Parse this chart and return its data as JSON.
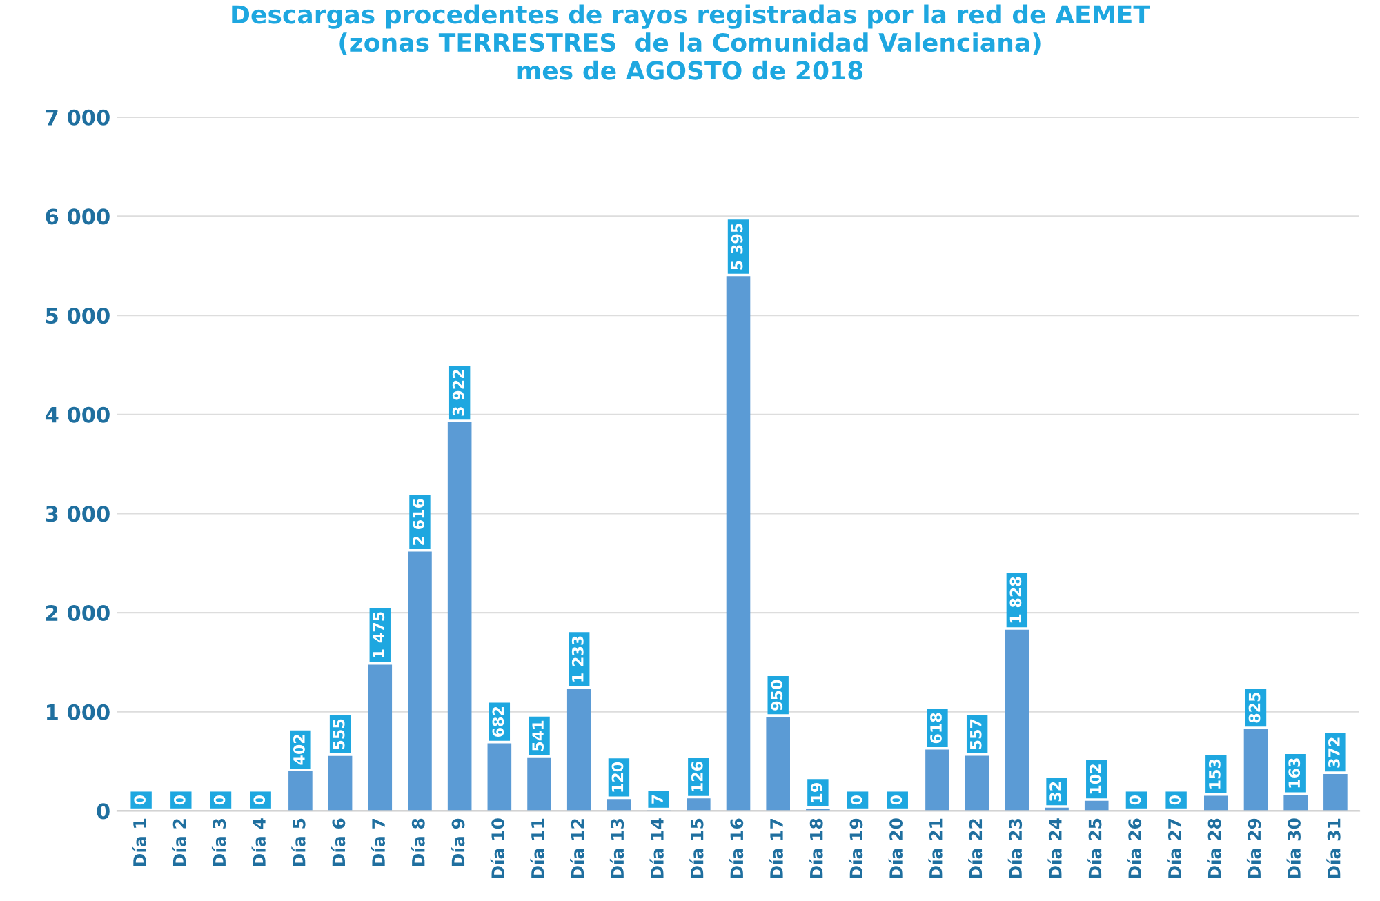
{
  "chart_data": {
    "type": "bar",
    "title": "Descargas procedentes de rayos registradas por la red de AEMET\n(zonas TERRESTRES  de la Comunidad Valenciana)\nmes de AGOSTO de 2018",
    "categories": [
      "Día 1",
      "Día 2",
      "Día 3",
      "Día 4",
      "Día 5",
      "Día 6",
      "Día 7",
      "Día 8",
      "Día 9",
      "Día 10",
      "Día 11",
      "Día 12",
      "Día 13",
      "Día 14",
      "Día 15",
      "Día 16",
      "Día 17",
      "Día 18",
      "Día 19",
      "Día 20",
      "Día 21",
      "Día 22",
      "Día 23",
      "Día 24",
      "Día 25",
      "Día 26",
      "Día 27",
      "Día 28",
      "Día 29",
      "Día 30",
      "Día 31"
    ],
    "values": [
      0,
      0,
      0,
      0,
      402,
      555,
      1475,
      2616,
      3922,
      682,
      541,
      1233,
      120,
      7,
      126,
      5395,
      950,
      19,
      0,
      0,
      618,
      557,
      1828,
      32,
      102,
      0,
      0,
      153,
      825,
      163,
      372
    ],
    "value_labels": [
      "0",
      "0",
      "0",
      "0",
      "402",
      "555",
      "1 475",
      "2 616",
      "3 922",
      "682",
      "541",
      "1 233",
      "120",
      "7",
      "126",
      "5 395",
      "950",
      "19",
      "0",
      "0",
      "618",
      "557",
      "1 828",
      "32",
      "102",
      "0",
      "0",
      "153",
      "825",
      "163",
      "372"
    ],
    "color": "#5b9bd5",
    "ylim": [
      0,
      7000
    ],
    "yticks": [
      {
        "value": 0,
        "label": "0"
      },
      {
        "value": 1000,
        "label": "1 000"
      },
      {
        "value": 2000,
        "label": "2 000"
      },
      {
        "value": 3000,
        "label": "3 000"
      },
      {
        "value": 4000,
        "label": "4 000"
      },
      {
        "value": 5000,
        "label": "5 000"
      },
      {
        "value": 6000,
        "label": "6 000"
      },
      {
        "value": 7000,
        "label": "7 000"
      }
    ],
    "grid": "y"
  }
}
